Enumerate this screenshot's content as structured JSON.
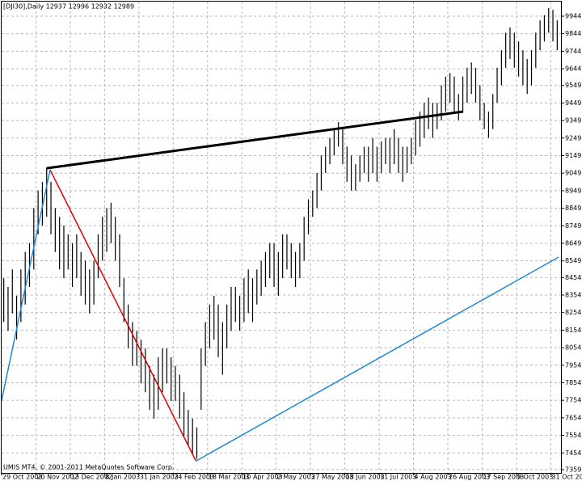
{
  "chart_data": {
    "type": "hl_bars",
    "title": "[DJI30],Daily  12937 12996 12932 12989",
    "footer": "UMIS MT4, © 2001-2011 MetaQuotes Software Corp.",
    "color": "#000000",
    "grid": true,
    "xlim": [
      0,
      130
    ],
    "xticks": [
      {
        "value": 0,
        "label": "29 Oct 2002"
      },
      {
        "value": 8,
        "label": "20 Nov 2002"
      },
      {
        "value": 16,
        "label": "13 Dec 2002"
      },
      {
        "value": 24,
        "label": "8 Jan 2003"
      },
      {
        "value": 32,
        "label": "31 Jan 2003"
      },
      {
        "value": 40,
        "label": "24 Feb 2003"
      },
      {
        "value": 48,
        "label": "18 Mar 2003"
      },
      {
        "value": 56,
        "label": "10 Apr 2003"
      },
      {
        "value": 64,
        "label": "2 May 2003"
      },
      {
        "value": 72,
        "label": "27 May 2003"
      },
      {
        "value": 80,
        "label": "18 Jun 2003"
      },
      {
        "value": 88,
        "label": "11 Jul 2003"
      },
      {
        "value": 96,
        "label": "4 Aug 2003"
      },
      {
        "value": 104,
        "label": "26 Aug 2003"
      },
      {
        "value": 112,
        "label": "17 Sep 2003"
      },
      {
        "value": 120,
        "label": "9 Oct 2003"
      },
      {
        "value": 128,
        "label": "31 Oct 2003"
      }
    ],
    "ylim": [
      7340,
      10027
    ],
    "yticks": [
      9944,
      9844,
      9744,
      9644,
      9549,
      9449,
      9349,
      9249,
      9149,
      9049,
      8949,
      8849,
      8749,
      8649,
      8549,
      8454,
      8354,
      8254,
      8154,
      8054,
      7954,
      7854,
      7754,
      7654,
      7554,
      7454,
      7359
    ],
    "lows": [
      8200,
      8150,
      8250,
      8100,
      8200,
      8300,
      8400,
      8500,
      8700,
      8750,
      8800,
      8700,
      8600,
      8500,
      8450,
      8500,
      8400,
      8450,
      8350,
      8300,
      8250,
      8300,
      8450,
      8550,
      8600,
      8650,
      8550,
      8400,
      8200,
      8050,
      7950,
      7950,
      7850,
      7800,
      7700,
      7650,
      7700,
      7800,
      7850,
      7750,
      7750,
      7650,
      7550,
      7500,
      7450,
      7420,
      7700,
      7950,
      8050,
      8100,
      8000,
      7900,
      8050,
      8150,
      8200,
      8150,
      8200,
      8250,
      8200,
      8300,
      8350,
      8400,
      8450,
      8400,
      8350,
      8450,
      8500,
      8450,
      8400,
      8450,
      8550,
      8700,
      8800,
      8850,
      8950,
      9050,
      9100,
      9150,
      9200,
      9100,
      9000,
      8950,
      8950,
      9000,
      9050,
      9000,
      9050,
      9000,
      9050,
      9100,
      9050,
      9100,
      9050,
      9000,
      9050,
      9100,
      9150,
      9200,
      9250,
      9300,
      9250,
      9300,
      9350,
      9400,
      9450,
      9400,
      9350,
      9400,
      9450,
      9500,
      9450,
      9350,
      9300,
      9250,
      9300,
      9450,
      9550,
      9650,
      9700,
      9650,
      9600,
      9550,
      9500,
      9550,
      9650,
      9750,
      9800,
      9850,
      9800,
      9750
    ],
    "highs": [
      8450,
      8400,
      8500,
      8350,
      8500,
      8600,
      8650,
      8850,
      8950,
      9000,
      9080,
      9000,
      8850,
      8800,
      8750,
      8700,
      8650,
      8700,
      8600,
      8550,
      8500,
      8550,
      8700,
      8800,
      8850,
      8880,
      8800,
      8700,
      8450,
      8300,
      8200,
      8150,
      8100,
      8050,
      7950,
      7900,
      8000,
      8050,
      8050,
      8000,
      7950,
      7900,
      7800,
      7700,
      7650,
      7600,
      8050,
      8200,
      8300,
      8350,
      8300,
      8200,
      8300,
      8400,
      8400,
      8350,
      8450,
      8500,
      8450,
      8500,
      8550,
      8600,
      8650,
      8650,
      8600,
      8700,
      8700,
      8650,
      8600,
      8650,
      8800,
      8900,
      8950,
      9050,
      9150,
      9200,
      9250,
      9300,
      9340,
      9300,
      9200,
      9150,
      9100,
      9150,
      9200,
      9200,
      9250,
      9200,
      9230,
      9250,
      9250,
      9300,
      9250,
      9200,
      9200,
      9250,
      9350,
      9400,
      9450,
      9480,
      9450,
      9450,
      9550,
      9600,
      9620,
      9600,
      9500,
      9600,
      9650,
      9680,
      9650,
      9550,
      9450,
      9400,
      9500,
      9650,
      9750,
      9850,
      9880,
      9850,
      9800,
      9750,
      9700,
      9750,
      9850,
      9920,
      9950,
      9990,
      9980,
      9920
    ],
    "trendlines": [
      {
        "color": "#000000",
        "weight": "thick",
        "x": [
          10.5,
          107.6
        ],
        "y": [
          9077,
          9400
        ]
      },
      {
        "color": "#e00000",
        "weight": "thin",
        "x": [
          11.3,
          45.3
        ],
        "y": [
          9068,
          7408
        ]
      },
      {
        "color": "#1e88d8",
        "weight": "thin",
        "x": [
          0,
          11.3
        ],
        "y": [
          7754,
          9068
        ]
      },
      {
        "color": "#1e88d8",
        "weight": "thin",
        "x": [
          45.3,
          129.8
        ],
        "y": [
          7408,
          8570
        ]
      }
    ]
  }
}
